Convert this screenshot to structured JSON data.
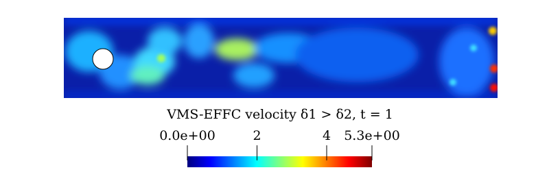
{
  "chart_data": {
    "type": "colorbar",
    "title": "VMS-EFFC velocity δ1 > δ2, t = 1",
    "xlim": [
      0,
      5.3
    ],
    "xticks": [
      {
        "value": 0,
        "label": "0.0e+00"
      },
      2,
      4,
      {
        "value": 5.3,
        "label": "5.3e+00"
      }
    ],
    "colormap": [
      "#00007f",
      "#0000ff",
      "#007fff",
      "#00ffff",
      "#7fff7f",
      "#ffff00",
      "#ff7f00",
      "#ff0000",
      "#7f0000"
    ]
  }
}
